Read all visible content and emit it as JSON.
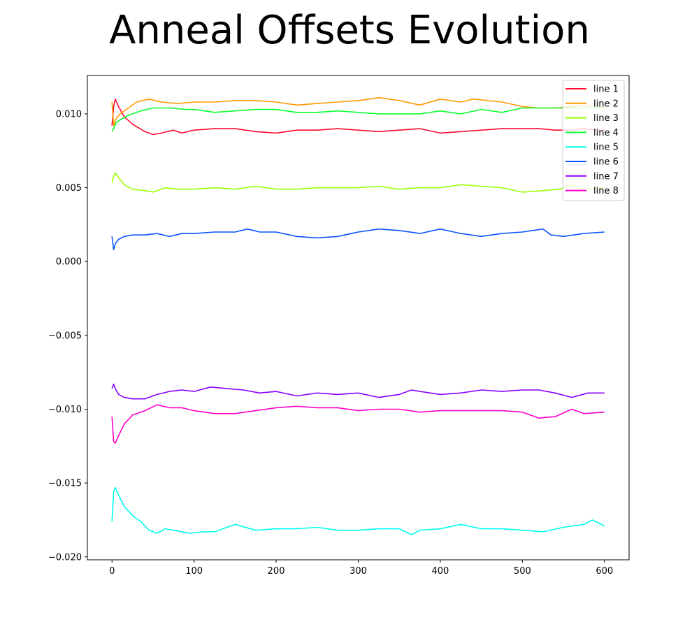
{
  "chart_data": {
    "type": "line",
    "title": "Anneal Offsets Evolution",
    "xlabel": "",
    "ylabel": "",
    "xlim": [
      -30,
      630
    ],
    "ylim": [
      -0.0202,
      0.0126
    ],
    "x_ticks": [
      0,
      100,
      200,
      300,
      400,
      500,
      600
    ],
    "x_tick_labels": [
      "0",
      "100",
      "200",
      "300",
      "400",
      "500",
      "600"
    ],
    "y_ticks": [
      0.01,
      0.005,
      0.0,
      -0.005,
      -0.01,
      -0.015,
      -0.02
    ],
    "y_tick_labels": [
      "0.010",
      "0.005",
      "0.000",
      "−0.005",
      "−0.010",
      "−0.015",
      "−0.020"
    ],
    "grid": false,
    "legend_position": "top-right",
    "series": [
      {
        "name": "line 1",
        "color": "#ff0a2f",
        "x": [
          0,
          2,
          4,
          8,
          15,
          25,
          40,
          50,
          60,
          75,
          85,
          100,
          125,
          150,
          175,
          200,
          225,
          250,
          275,
          300,
          325,
          350,
          375,
          400,
          425,
          450,
          475,
          500,
          520,
          540,
          560,
          575,
          590,
          600
        ],
        "y": [
          0.0092,
          0.0105,
          0.011,
          0.0105,
          0.0098,
          0.0093,
          0.0088,
          0.0086,
          0.0087,
          0.0089,
          0.0087,
          0.0089,
          0.009,
          0.009,
          0.0088,
          0.0087,
          0.0089,
          0.0089,
          0.009,
          0.0089,
          0.0088,
          0.0089,
          0.009,
          0.0087,
          0.0088,
          0.0089,
          0.009,
          0.009,
          0.009,
          0.0089,
          0.0089,
          0.009,
          0.0089,
          0.0089
        ]
      },
      {
        "name": "line 2",
        "color": "#ff9900",
        "x": [
          0,
          2,
          5,
          10,
          20,
          30,
          45,
          60,
          80,
          100,
          125,
          150,
          175,
          200,
          225,
          250,
          275,
          300,
          325,
          350,
          375,
          400,
          425,
          440,
          475,
          500,
          520,
          540,
          560,
          580,
          600
        ],
        "y": [
          0.0108,
          0.0092,
          0.0097,
          0.01,
          0.0104,
          0.0108,
          0.011,
          0.0108,
          0.0107,
          0.0108,
          0.0108,
          0.0109,
          0.0109,
          0.0108,
          0.0106,
          0.0107,
          0.0108,
          0.0109,
          0.0111,
          0.0109,
          0.0106,
          0.011,
          0.0108,
          0.011,
          0.0108,
          0.0105,
          0.0104,
          0.0104,
          0.0105,
          0.0106,
          0.0104
        ]
      },
      {
        "name": "line 3",
        "color": "#99ff00",
        "x": [
          0,
          2,
          4,
          8,
          15,
          25,
          40,
          50,
          65,
          80,
          100,
          125,
          150,
          175,
          200,
          225,
          250,
          275,
          300,
          325,
          350,
          375,
          400,
          425,
          450,
          475,
          500,
          525,
          545,
          560,
          575,
          600
        ],
        "y": [
          0.0053,
          0.0058,
          0.006,
          0.0057,
          0.0052,
          0.0049,
          0.0048,
          0.0047,
          0.005,
          0.0049,
          0.0049,
          0.005,
          0.0049,
          0.0051,
          0.0049,
          0.0049,
          0.005,
          0.005,
          0.005,
          0.0051,
          0.0049,
          0.005,
          0.005,
          0.0052,
          0.0051,
          0.005,
          0.0047,
          0.0048,
          0.0049,
          0.0052,
          0.0049,
          0.005
        ]
      },
      {
        "name": "line 4",
        "color": "#0aff2f",
        "x": [
          0,
          2,
          5,
          10,
          20,
          35,
          50,
          70,
          90,
          100,
          125,
          150,
          175,
          200,
          225,
          250,
          275,
          300,
          325,
          350,
          375,
          400,
          425,
          450,
          475,
          500,
          525,
          550,
          575,
          600
        ],
        "y": [
          0.0088,
          0.009,
          0.0094,
          0.0096,
          0.0099,
          0.0102,
          0.0104,
          0.0104,
          0.0103,
          0.0103,
          0.0101,
          0.0102,
          0.0103,
          0.0103,
          0.0101,
          0.0101,
          0.0102,
          0.0101,
          0.01,
          0.01,
          0.01,
          0.0102,
          0.01,
          0.0103,
          0.0101,
          0.0104,
          0.0104,
          0.0104,
          0.0104,
          0.0105
        ]
      },
      {
        "name": "line 5",
        "color": "#00ffee",
        "x": [
          0,
          2,
          4,
          8,
          15,
          25,
          35,
          45,
          55,
          65,
          75,
          85,
          95,
          110,
          125,
          150,
          175,
          200,
          225,
          250,
          275,
          300,
          325,
          350,
          365,
          375,
          400,
          425,
          450,
          475,
          500,
          525,
          550,
          575,
          585,
          600
        ],
        "y": [
          -0.0176,
          -0.0156,
          -0.0153,
          -0.0158,
          -0.0166,
          -0.0172,
          -0.0176,
          -0.0182,
          -0.0184,
          -0.0181,
          -0.0182,
          -0.0183,
          -0.0184,
          -0.0183,
          -0.0183,
          -0.0178,
          -0.0182,
          -0.0181,
          -0.0181,
          -0.018,
          -0.0182,
          -0.0182,
          -0.0181,
          -0.0181,
          -0.0185,
          -0.0182,
          -0.0181,
          -0.0178,
          -0.0181,
          -0.0181,
          -0.0182,
          -0.0183,
          -0.018,
          -0.0178,
          -0.0175,
          -0.0179
        ]
      },
      {
        "name": "line 6",
        "color": "#0a54ff",
        "x": [
          0,
          2,
          4,
          8,
          15,
          25,
          40,
          55,
          70,
          85,
          100,
          125,
          150,
          165,
          180,
          200,
          225,
          250,
          275,
          300,
          325,
          350,
          375,
          400,
          425,
          450,
          475,
          500,
          525,
          535,
          550,
          575,
          600
        ],
        "y": [
          0.0017,
          0.0008,
          0.0012,
          0.0015,
          0.0017,
          0.0018,
          0.0018,
          0.0019,
          0.0017,
          0.0019,
          0.0019,
          0.002,
          0.002,
          0.0022,
          0.002,
          0.002,
          0.0017,
          0.0016,
          0.0017,
          0.002,
          0.0022,
          0.0021,
          0.0019,
          0.0022,
          0.0019,
          0.0017,
          0.0019,
          0.002,
          0.0022,
          0.0018,
          0.0017,
          0.0019,
          0.002
        ]
      },
      {
        "name": "line 7",
        "color": "#8800ff",
        "x": [
          0,
          2,
          4,
          8,
          15,
          25,
          40,
          55,
          70,
          85,
          100,
          120,
          140,
          160,
          180,
          200,
          225,
          250,
          275,
          300,
          325,
          350,
          365,
          375,
          400,
          425,
          450,
          475,
          500,
          520,
          540,
          560,
          580,
          600
        ],
        "y": [
          -0.0086,
          -0.0083,
          -0.0086,
          -0.009,
          -0.0092,
          -0.0093,
          -0.0093,
          -0.009,
          -0.0088,
          -0.0087,
          -0.0088,
          -0.0085,
          -0.0086,
          -0.0087,
          -0.0089,
          -0.0088,
          -0.0091,
          -0.0089,
          -0.009,
          -0.0089,
          -0.0092,
          -0.009,
          -0.0087,
          -0.0088,
          -0.009,
          -0.0089,
          -0.0087,
          -0.0088,
          -0.0087,
          -0.0087,
          -0.0089,
          -0.0092,
          -0.0089,
          -0.0089
        ]
      },
      {
        "name": "line 8",
        "color": "#ff00cc",
        "x": [
          0,
          2,
          4,
          8,
          15,
          25,
          40,
          55,
          70,
          85,
          100,
          125,
          150,
          175,
          200,
          225,
          250,
          275,
          300,
          325,
          350,
          375,
          400,
          425,
          450,
          475,
          500,
          520,
          540,
          560,
          575,
          600
        ],
        "y": [
          -0.0105,
          -0.0122,
          -0.0123,
          -0.0118,
          -0.011,
          -0.0104,
          -0.0101,
          -0.0097,
          -0.0099,
          -0.0099,
          -0.0101,
          -0.0103,
          -0.0103,
          -0.0101,
          -0.0099,
          -0.0098,
          -0.0099,
          -0.0099,
          -0.0101,
          -0.01,
          -0.01,
          -0.0102,
          -0.0101,
          -0.0101,
          -0.0101,
          -0.0101,
          -0.0102,
          -0.0106,
          -0.0105,
          -0.01,
          -0.0103,
          -0.0102
        ]
      }
    ]
  }
}
